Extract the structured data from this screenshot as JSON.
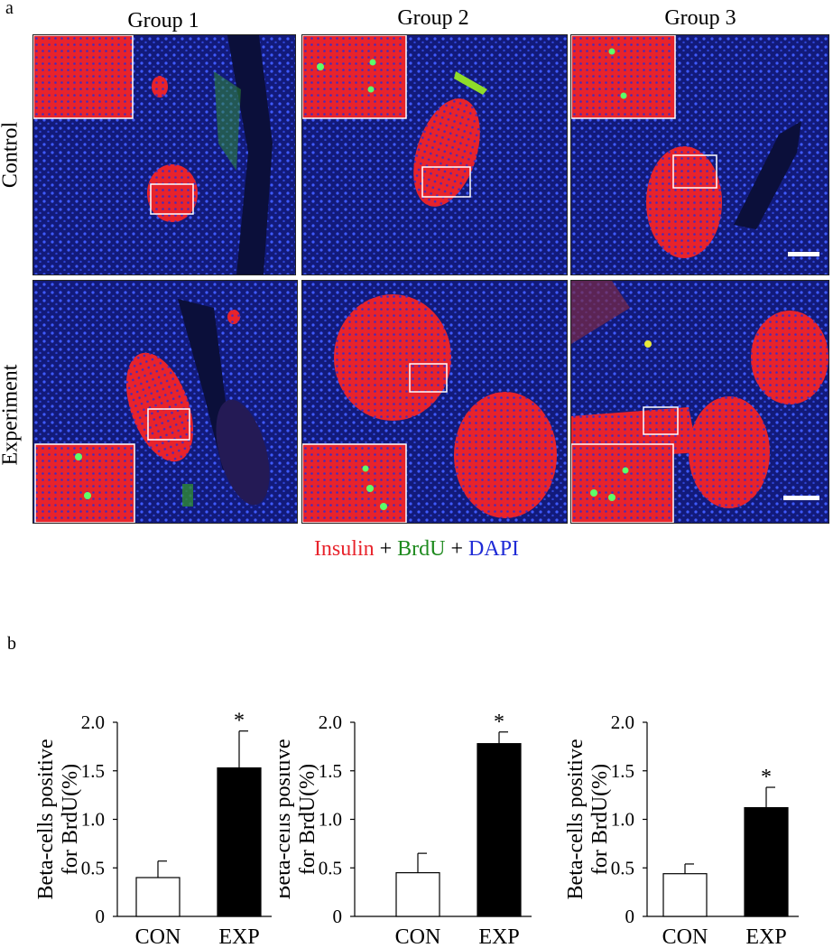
{
  "panel_a": {
    "label": "a",
    "columns": [
      "Group 1",
      "Group 2",
      "Group 3"
    ],
    "rows": [
      "Control",
      "Experiment"
    ],
    "stain_legend": [
      {
        "text": "Insulin",
        "color": "#e8232b"
      },
      {
        "text": " + ",
        "color": "#000000"
      },
      {
        "text": "BrdU",
        "color": "#1e8a1e"
      },
      {
        "text": " + ",
        "color": "#000000"
      },
      {
        "text": "DAPI",
        "color": "#1f2bd6"
      }
    ]
  },
  "panel_b": {
    "label": "b"
  },
  "chart_data": [
    {
      "type": "bar",
      "categories": [
        "CON",
        "EXP"
      ],
      "values": [
        0.4,
        1.53
      ],
      "errors": [
        0.17,
        0.38
      ],
      "fills": [
        "#ffffff",
        "#000000"
      ],
      "significance": [
        "",
        "*"
      ],
      "ylabel": "Beta-cells positive for BrdU(%)",
      "ylim": [
        0,
        2.0
      ],
      "yticks": [
        "0",
        "0.5",
        "1.0",
        "1.5",
        "2.0"
      ]
    },
    {
      "type": "bar",
      "categories": [
        "CON",
        "EXP"
      ],
      "values": [
        0.45,
        1.78
      ],
      "errors": [
        0.2,
        0.12
      ],
      "fills": [
        "#ffffff",
        "#000000"
      ],
      "significance": [
        "",
        "*"
      ],
      "ylabel": "Beta-cells positive for BrdU(%)",
      "ylim": [
        0,
        2.0
      ],
      "yticks": [
        "0",
        "0.5",
        "1.0",
        "1.5",
        "2.0"
      ]
    },
    {
      "type": "bar",
      "categories": [
        "CON",
        "EXP"
      ],
      "values": [
        0.44,
        1.12
      ],
      "errors": [
        0.1,
        0.21
      ],
      "fills": [
        "#ffffff",
        "#000000"
      ],
      "significance": [
        "",
        "*"
      ],
      "ylabel": "Beta-cells positive for BrdU(%)",
      "ylim": [
        0,
        2.0
      ],
      "yticks": [
        "0",
        "0.5",
        "1.0",
        "1.5",
        "2.0"
      ]
    }
  ]
}
